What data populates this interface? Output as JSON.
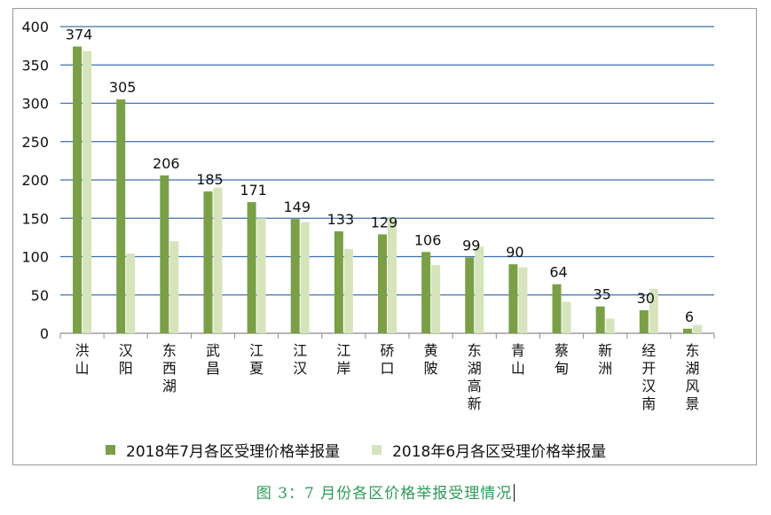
{
  "chart_data": {
    "type": "bar",
    "categories": [
      "洪山",
      "汉阳",
      "东西湖",
      "武昌",
      "江夏",
      "江汉",
      "江岸",
      "硚口",
      "黄陂",
      "东湖高新",
      "青山",
      "蔡甸",
      "新洲",
      "经开汉南",
      "东湖风景"
    ],
    "series": [
      {
        "name": "2018年7月各区受理价格举报量",
        "values": [
          374,
          305,
          206,
          185,
          171,
          149,
          133,
          129,
          106,
          99,
          90,
          64,
          35,
          30,
          6
        ],
        "color": "#7a9f46"
      },
      {
        "name": "2018年6月各区受理价格举报量",
        "values": [
          368,
          104,
          120,
          190,
          150,
          145,
          110,
          150,
          89,
          113,
          86,
          41,
          19,
          58,
          11
        ],
        "color": "#d5e4bb"
      }
    ],
    "data_labels": [
      "374",
      "305",
      "206",
      "185",
      "171",
      "149",
      "133",
      "129",
      "106",
      "99",
      "90",
      "64",
      "35",
      "30",
      "6"
    ],
    "yticks": [
      0,
      50,
      100,
      150,
      200,
      250,
      300,
      350,
      400
    ],
    "ylim": [
      0,
      400
    ],
    "grid": true,
    "gridline_color": "#3f6fb0",
    "legend_position": "bottom",
    "title": "",
    "xlabel": "",
    "ylabel": ""
  },
  "caption": "图 3：7 月份各区价格举报受理情况"
}
